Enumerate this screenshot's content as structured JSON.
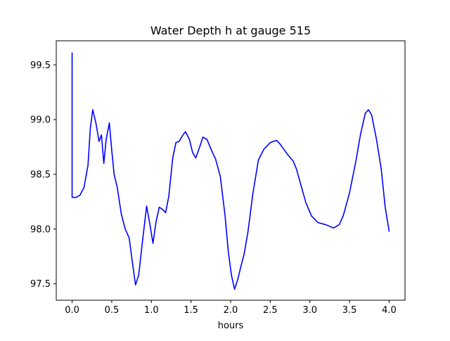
{
  "chart_data": {
    "type": "line",
    "title": "Water Depth h at gauge 515",
    "xlabel": "hours",
    "ylabel": "",
    "xlim": [
      -0.2,
      4.2
    ],
    "ylim": [
      97.35,
      99.72
    ],
    "xticks": [
      0.0,
      0.5,
      1.0,
      1.5,
      2.0,
      2.5,
      3.0,
      3.5,
      4.0
    ],
    "xtick_labels": [
      "0.0",
      "0.5",
      "1.0",
      "1.5",
      "2.0",
      "2.5",
      "3.0",
      "3.5",
      "4.0"
    ],
    "yticks": [
      97.5,
      98.0,
      98.5,
      99.0,
      99.5
    ],
    "ytick_labels": [
      "97.5",
      "98.0",
      "98.5",
      "99.0",
      "99.5"
    ],
    "grid": false,
    "series": [
      {
        "color": "#0000ff",
        "x": [
          0.0,
          0.0,
          0.0,
          0.05,
          0.1,
          0.15,
          0.2,
          0.23,
          0.26,
          0.3,
          0.34,
          0.37,
          0.4,
          0.43,
          0.47,
          0.5,
          0.53,
          0.57,
          0.62,
          0.67,
          0.72,
          0.76,
          0.8,
          0.84,
          0.89,
          0.94,
          0.98,
          1.02,
          1.06,
          1.1,
          1.14,
          1.18,
          1.22,
          1.27,
          1.31,
          1.35,
          1.39,
          1.43,
          1.48,
          1.52,
          1.56,
          1.61,
          1.65,
          1.7,
          1.73,
          1.77,
          1.81,
          1.87,
          1.93,
          1.97,
          2.01,
          2.05,
          2.09,
          2.13,
          2.17,
          2.22,
          2.28,
          2.35,
          2.42,
          2.5,
          2.58,
          2.62,
          2.66,
          2.72,
          2.79,
          2.83,
          2.88,
          2.95,
          3.02,
          3.1,
          3.2,
          3.3,
          3.37,
          3.42,
          3.5,
          3.58,
          3.64,
          3.7,
          3.74,
          3.78,
          3.84,
          3.9,
          3.95,
          4.0
        ],
        "y": [
          99.61,
          98.29,
          98.29,
          98.29,
          98.31,
          98.38,
          98.58,
          98.92,
          99.09,
          98.97,
          98.8,
          98.86,
          98.6,
          98.82,
          98.97,
          98.72,
          98.5,
          98.38,
          98.14,
          98.0,
          97.92,
          97.7,
          97.49,
          97.58,
          97.9,
          98.21,
          98.05,
          97.87,
          98.07,
          98.2,
          98.18,
          98.15,
          98.3,
          98.65,
          98.79,
          98.8,
          98.85,
          98.89,
          98.82,
          98.7,
          98.65,
          98.75,
          98.84,
          98.82,
          98.77,
          98.7,
          98.64,
          98.48,
          98.12,
          97.8,
          97.58,
          97.45,
          97.54,
          97.66,
          97.77,
          97.98,
          98.32,
          98.63,
          98.73,
          98.79,
          98.81,
          98.78,
          98.74,
          98.68,
          98.62,
          98.55,
          98.42,
          98.24,
          98.12,
          98.06,
          98.04,
          98.01,
          98.04,
          98.12,
          98.33,
          98.62,
          98.87,
          99.06,
          99.09,
          99.04,
          98.82,
          98.55,
          98.2,
          97.98
        ]
      }
    ]
  }
}
